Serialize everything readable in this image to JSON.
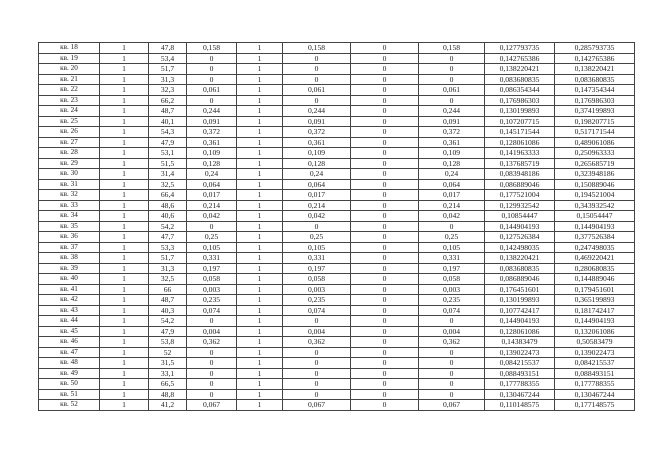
{
  "table": {
    "rows": [
      [
        "кв. 18",
        "1",
        "47,8",
        "0,158",
        "1",
        "0,158",
        "0",
        "0,158",
        "0,127793735",
        "0,285793735"
      ],
      [
        "кв. 19",
        "1",
        "53,4",
        "0",
        "1",
        "0",
        "0",
        "0",
        "0,142765386",
        "0,142765386"
      ],
      [
        "кв. 20",
        "1",
        "51,7",
        "0",
        "1",
        "0",
        "0",
        "0",
        "0,138220421",
        "0,138220421"
      ],
      [
        "кв. 21",
        "1",
        "31,3",
        "0",
        "1",
        "0",
        "0",
        "0",
        "0,083680835",
        "0,083680835"
      ],
      [
        "кв. 22",
        "1",
        "32,3",
        "0,061",
        "1",
        "0,061",
        "0",
        "0,061",
        "0,086354344",
        "0,147354344"
      ],
      [
        "кв. 23",
        "1",
        "66,2",
        "0",
        "1",
        "0",
        "0",
        "0",
        "0,176986303",
        "0,176986303"
      ],
      [
        "кв. 24",
        "1",
        "48,7",
        "0,244",
        "1",
        "0,244",
        "0",
        "0,244",
        "0,130199893",
        "0,374199893"
      ],
      [
        "кв. 25",
        "1",
        "40,1",
        "0,091",
        "1",
        "0,091",
        "0",
        "0,091",
        "0,107207715",
        "0,198207715"
      ],
      [
        "кв. 26",
        "1",
        "54,3",
        "0,372",
        "1",
        "0,372",
        "0",
        "0,372",
        "0,145171544",
        "0,517171544"
      ],
      [
        "кв. 27",
        "1",
        "47,9",
        "0,361",
        "1",
        "0,361",
        "0",
        "0,361",
        "0,128061086",
        "0,489061086"
      ],
      [
        "кв. 28",
        "1",
        "53,1",
        "0,109",
        "1",
        "0,109",
        "0",
        "0,109",
        "0,141963333",
        "0,250963333"
      ],
      [
        "кв. 29",
        "1",
        "51,5",
        "0,128",
        "1",
        "0,128",
        "0",
        "0,128",
        "0,137685719",
        "0,265685719"
      ],
      [
        "кв. 30",
        "1",
        "31,4",
        "0,24",
        "1",
        "0,24",
        "0",
        "0,24",
        "0,083948186",
        "0,323948186"
      ],
      [
        "кв. 31",
        "1",
        "32,5",
        "0,064",
        "1",
        "0,064",
        "0",
        "0,064",
        "0,086889046",
        "0,150889046"
      ],
      [
        "кв. 32",
        "1",
        "66,4",
        "0,017",
        "1",
        "0,017",
        "0",
        "0,017",
        "0,177521004",
        "0,194521004"
      ],
      [
        "кв. 33",
        "1",
        "48,6",
        "0,214",
        "1",
        "0,214",
        "0",
        "0,214",
        "0,129932542",
        "0,343932542"
      ],
      [
        "кв. 34",
        "1",
        "40,6",
        "0,042",
        "1",
        "0,042",
        "0",
        "0,042",
        "0,10854447",
        "0,15054447"
      ],
      [
        "кв. 35",
        "1",
        "54,2",
        "0",
        "1",
        "0",
        "0",
        "0",
        "0,144904193",
        "0,144904193"
      ],
      [
        "кв. 36",
        "1",
        "47,7",
        "0,25",
        "1",
        "0,25",
        "0",
        "0,25",
        "0,127526384",
        "0,377526384"
      ],
      [
        "кв. 37",
        "1",
        "53,3",
        "0,105",
        "1",
        "0,105",
        "0",
        "0,105",
        "0,142498035",
        "0,247498035"
      ],
      [
        "кв. 38",
        "1",
        "51,7",
        "0,331",
        "1",
        "0,331",
        "0",
        "0,331",
        "0,138220421",
        "0,469220421"
      ],
      [
        "кв. 39",
        "1",
        "31,3",
        "0,197",
        "1",
        "0,197",
        "0",
        "0,197",
        "0,083680835",
        "0,280680835"
      ],
      [
        "кв. 40",
        "1",
        "32,5",
        "0,058",
        "1",
        "0,058",
        "0",
        "0,058",
        "0,086889046",
        "0,144889046"
      ],
      [
        "кв. 41",
        "1",
        "66",
        "0,003",
        "1",
        "0,003",
        "0",
        "0,003",
        "0,176451601",
        "0,179451601"
      ],
      [
        "кв. 42",
        "1",
        "48,7",
        "0,235",
        "1",
        "0,235",
        "0",
        "0,235",
        "0,130199893",
        "0,365199893"
      ],
      [
        "кв. 43",
        "1",
        "40,3",
        "0,074",
        "1",
        "0,074",
        "0",
        "0,074",
        "0,107742417",
        "0,181742417"
      ],
      [
        "кв. 44",
        "1",
        "54,2",
        "0",
        "1",
        "0",
        "0",
        "0",
        "0,144904193",
        "0,144904193"
      ],
      [
        "кв. 45",
        "1",
        "47,9",
        "0,004",
        "1",
        "0,004",
        "0",
        "0,004",
        "0,128061086",
        "0,132061086"
      ],
      [
        "кв. 46",
        "1",
        "53,8",
        "0,362",
        "1",
        "0,362",
        "0",
        "0,362",
        "0,14383479",
        "0,50583479"
      ],
      [
        "кв. 47",
        "1",
        "52",
        "0",
        "1",
        "0",
        "0",
        "0",
        "0,139022473",
        "0,139022473"
      ],
      [
        "кв. 48",
        "1",
        "31,5",
        "0",
        "1",
        "0",
        "0",
        "0",
        "0,084215537",
        "0,084215537"
      ],
      [
        "кв. 49",
        "1",
        "33,1",
        "0",
        "1",
        "0",
        "0",
        "0",
        "0,088493151",
        "0,088493151"
      ],
      [
        "кв. 50",
        "1",
        "66,5",
        "0",
        "1",
        "0",
        "0",
        "0",
        "0,177788355",
        "0,177788355"
      ],
      [
        "кв. 51",
        "1",
        "48,8",
        "0",
        "1",
        "0",
        "0",
        "0",
        "0,130467244",
        "0,130467244"
      ],
      [
        "кв. 52",
        "1",
        "41,2",
        "0,067",
        "1",
        "0,067",
        "0",
        "0,067",
        "0,110148575",
        "0,177148575"
      ]
    ]
  }
}
